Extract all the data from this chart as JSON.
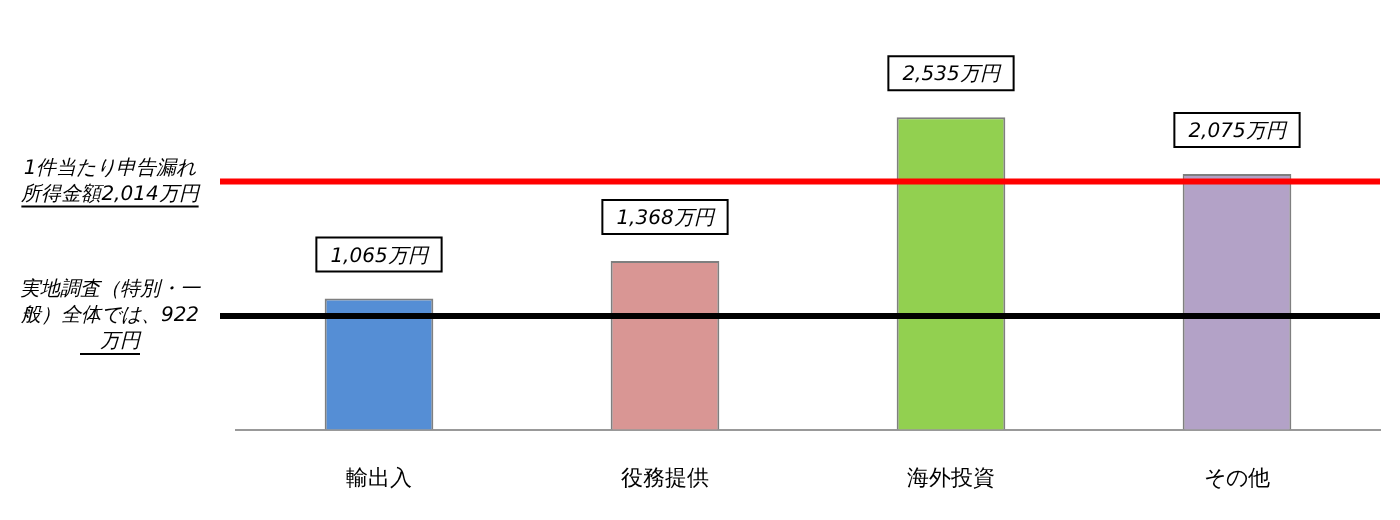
{
  "chart_data": {
    "type": "bar",
    "categories": [
      "輸出入",
      "役務提供",
      "海外投資",
      "その他"
    ],
    "values": [
      1065,
      1368,
      2535,
      2075
    ],
    "colors": [
      "#558ed5",
      "#d99694",
      "#92d050",
      "#b3a2c7"
    ],
    "value_labels": [
      "1,065万円",
      "1,368万円",
      "2,535万円",
      "2,075万円"
    ],
    "tick_labels": "x",
    "grid": false,
    "legend": false,
    "ref_lines": [
      {
        "axis": "y",
        "value": 2014,
        "label": "1件当たり申告漏れ所得金額2,014万円",
        "color": "#ff0000"
      },
      {
        "axis": "y",
        "value": 922,
        "label": "実地調査（特別・一般）全体では、922　万円",
        "color": "#000000"
      }
    ]
  }
}
